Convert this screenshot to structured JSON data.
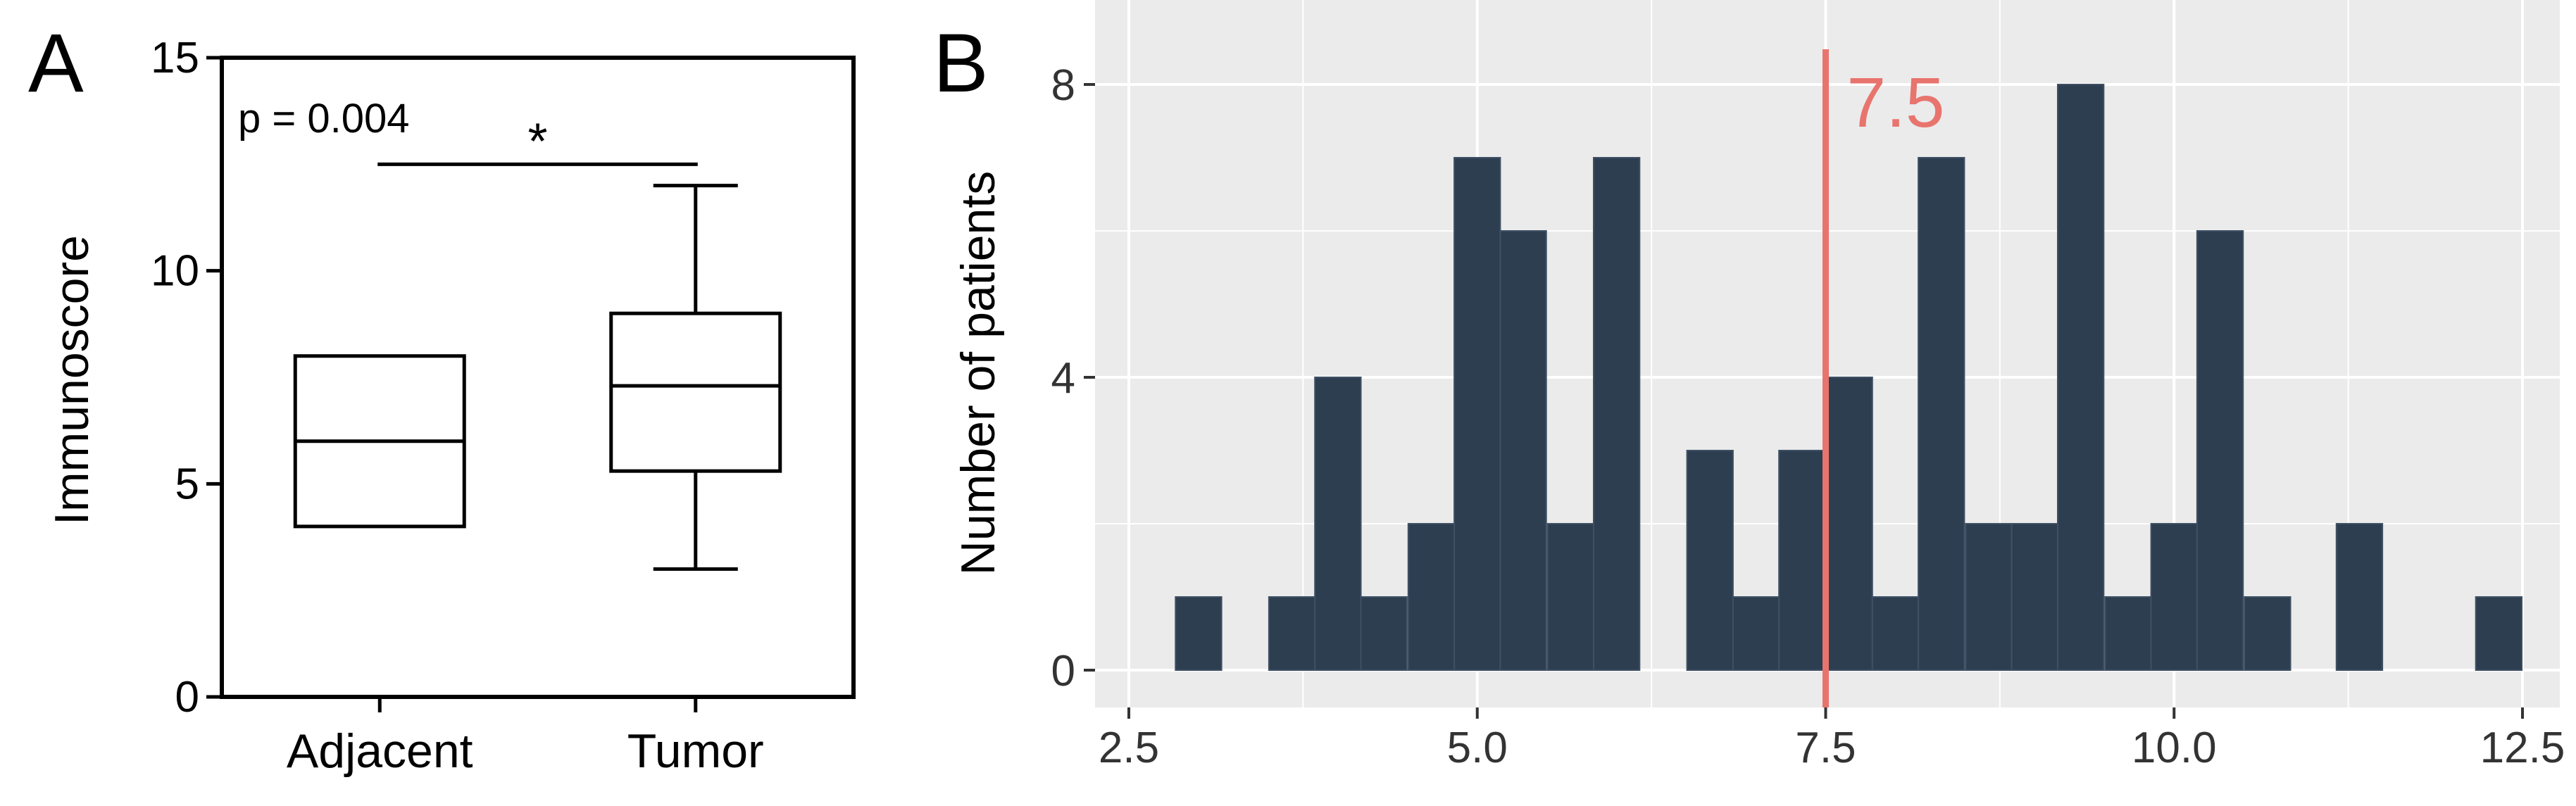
{
  "chart_data": [
    {
      "panel_label": "A",
      "type": "box",
      "ylabel": "Immunoscore",
      "ylim": [
        0,
        15
      ],
      "yticks": [
        0,
        5,
        10,
        15
      ],
      "categories": [
        "Adjacent",
        "Tumor"
      ],
      "boxes": [
        {
          "name": "Adjacent",
          "min": 4,
          "q1": 4,
          "median": 6,
          "q3": 8,
          "max": 8
        },
        {
          "name": "Tumor",
          "min": 3,
          "q1": 5.3,
          "median": 7.3,
          "q3": 9,
          "max": 12
        }
      ],
      "annotation": {
        "text": "p = 0.004",
        "significance": "*",
        "bracket_y": 12.5
      }
    },
    {
      "panel_label": "B",
      "type": "bar",
      "subtype": "histogram",
      "xlabel": "",
      "ylabel": "Number of patients",
      "xlim": [
        2.5,
        12.5
      ],
      "xticks": [
        "2.5",
        "5.0",
        "7.5",
        "10.0",
        "12.5"
      ],
      "ylim": [
        0,
        8
      ],
      "yticks": [
        0,
        4,
        8
      ],
      "bin_width": 0.33,
      "bins": [
        {
          "x": 3.0,
          "count": 1
        },
        {
          "x": 3.67,
          "count": 1
        },
        {
          "x": 4.0,
          "count": 4
        },
        {
          "x": 4.33,
          "count": 1
        },
        {
          "x": 4.67,
          "count": 2
        },
        {
          "x": 5.0,
          "count": 7
        },
        {
          "x": 5.33,
          "count": 6
        },
        {
          "x": 5.67,
          "count": 2
        },
        {
          "x": 6.0,
          "count": 7
        },
        {
          "x": 6.67,
          "count": 3
        },
        {
          "x": 7.0,
          "count": 1
        },
        {
          "x": 7.33,
          "count": 3
        },
        {
          "x": 7.67,
          "count": 4
        },
        {
          "x": 8.0,
          "count": 1
        },
        {
          "x": 8.33,
          "count": 7
        },
        {
          "x": 8.67,
          "count": 2
        },
        {
          "x": 9.0,
          "count": 2
        },
        {
          "x": 9.33,
          "count": 8
        },
        {
          "x": 9.67,
          "count": 1
        },
        {
          "x": 10.0,
          "count": 2
        },
        {
          "x": 10.33,
          "count": 6
        },
        {
          "x": 10.67,
          "count": 1
        },
        {
          "x": 11.33,
          "count": 2
        },
        {
          "x": 12.33,
          "count": 1
        }
      ],
      "threshold": {
        "value": 7.5,
        "label": "7.5",
        "color": "#e8746e"
      },
      "colors": {
        "bar": "#2d3e50",
        "bar_edge": "#3f5064",
        "panel_bg": "#ebebeb",
        "grid": "#ffffff"
      },
      "grid": true,
      "legend": "none"
    }
  ]
}
